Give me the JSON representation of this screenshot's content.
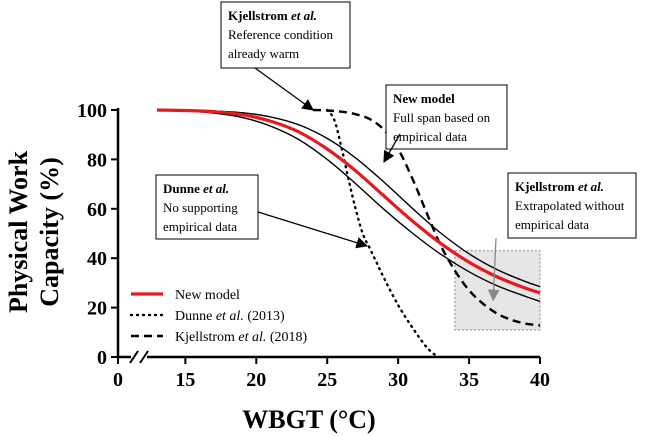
{
  "chart_data": {
    "type": "line",
    "xlabel": "WBGT (°C)",
    "ylabel_lines": [
      "Physical Work",
      "Capacity (%)"
    ],
    "x_ticks": [
      0,
      15,
      20,
      25,
      30,
      35,
      40
    ],
    "x_tick_labels": [
      "0",
      "15",
      "20",
      "25",
      "30",
      "35",
      "40"
    ],
    "y_ticks": [
      0,
      20,
      40,
      60,
      80,
      100
    ],
    "y_tick_labels": [
      "0",
      "20",
      "40",
      "60",
      "80",
      "100"
    ],
    "xlim": [
      0,
      40
    ],
    "ylim": [
      0,
      100
    ],
    "axis_break": true,
    "grid": false,
    "legend_position": "bottom-left",
    "colors": {
      "new_model": "#e8191d",
      "band": "#000000",
      "reference": "#000000",
      "highlight_fill": "#e6e6e6",
      "highlight_stroke": "#888888",
      "highlight_arrow": "#888888"
    },
    "series": [
      {
        "name": "New model",
        "style": "solid-red",
        "x": [
          13,
          15,
          17,
          19,
          21,
          23,
          25,
          27,
          29,
          31,
          33,
          35,
          37,
          39,
          40
        ],
        "y": [
          100,
          99.8,
          99.3,
          98.1,
          95.5,
          91.1,
          84.2,
          75.4,
          65.2,
          55.1,
          46.0,
          38.4,
          32.4,
          27.8,
          26.0
        ]
      },
      {
        "name": "Upper bound",
        "style": "solid-black-thin",
        "x": [
          13,
          15,
          17,
          19,
          21,
          23,
          25,
          27,
          29,
          31,
          33,
          35,
          37,
          39,
          40
        ],
        "y": [
          100,
          99.9,
          99.6,
          98.9,
          97.2,
          94.0,
          88.5,
          80.6,
          70.8,
          60.2,
          50.2,
          41.8,
          35.3,
          30.5,
          28.5
        ]
      },
      {
        "name": "Lower bound",
        "style": "solid-black-thin",
        "x": [
          13,
          15,
          17,
          19,
          21,
          23,
          25,
          27,
          29,
          31,
          33,
          35,
          37,
          39,
          40
        ],
        "y": [
          100,
          99.6,
          98.8,
          97.0,
          93.5,
          88.0,
          80.0,
          70.2,
          59.8,
          50.2,
          41.6,
          34.5,
          28.8,
          24.5,
          22.5
        ]
      },
      {
        "name": "Dunne et al. (2013)",
        "style": "dotted",
        "x": [
          25,
          25.5,
          26,
          26.5,
          27,
          27.5,
          28,
          28.5,
          29,
          30,
          31,
          32,
          32.8
        ],
        "y": [
          100,
          96,
          85,
          72,
          60,
          50,
          44,
          38,
          32,
          21,
          12,
          4,
          0
        ]
      },
      {
        "name": "Kjellstrom et al. (2018)",
        "style": "dashed",
        "x": [
          24,
          25,
          26,
          27,
          28,
          29,
          30,
          31,
          32,
          33,
          34,
          35,
          36,
          37,
          38,
          39,
          40
        ],
        "y": [
          100,
          99.8,
          99.3,
          98.3,
          96.3,
          92.0,
          84.2,
          72.3,
          58.5,
          45.2,
          35.0,
          27.0,
          21.5,
          17.5,
          15.0,
          13.5,
          12.8
        ]
      }
    ],
    "legend": [
      {
        "key": "new",
        "style": "solid-red",
        "parts": [
          {
            "t": "New model",
            "i": false
          }
        ]
      },
      {
        "key": "dunne",
        "style": "dotted",
        "parts": [
          {
            "t": "Dunne ",
            "i": false
          },
          {
            "t": "et al.",
            "i": true
          },
          {
            "t": " (2013)",
            "i": false
          }
        ]
      },
      {
        "key": "kjell",
        "style": "dashed",
        "parts": [
          {
            "t": "Kjellstrom ",
            "i": false
          },
          {
            "t": "et al.",
            "i": true
          },
          {
            "t": " (2018)",
            "i": false
          }
        ]
      }
    ],
    "annotations": [
      {
        "key": "kjellstrom-reference",
        "lines": [
          [
            {
              "t": "Kjellstrom ",
              "b": true
            },
            {
              "t": "et al.",
              "b": true,
              "i": true
            }
          ],
          [
            {
              "t": "Reference condition"
            }
          ],
          [
            {
              "t": "already warm"
            }
          ]
        ],
        "arrow_to": {
          "x": 24,
          "y": 100
        }
      },
      {
        "key": "new-model",
        "lines": [
          [
            {
              "t": "New model",
              "b": true
            }
          ],
          [
            {
              "t": "Full span based on"
            }
          ],
          [
            {
              "t": "empirical data"
            }
          ]
        ],
        "arrow_to": {
          "x": 29,
          "y": 79
        }
      },
      {
        "key": "dunne",
        "lines": [
          [
            {
              "t": "Dunne ",
              "b": true
            },
            {
              "t": "et al.",
              "b": true,
              "i": true
            }
          ],
          [
            {
              "t": "No supporting"
            }
          ],
          [
            {
              "t": "empirical data"
            }
          ]
        ],
        "arrow_to": {
          "x": 27.8,
          "y": 45
        }
      },
      {
        "key": "kjellstrom-extrapolated",
        "lines": [
          [
            {
              "t": "Kjellstrom ",
              "b": true
            },
            {
              "t": "et al.",
              "b": true,
              "i": true
            }
          ],
          [
            {
              "t": "Extrapolated without"
            }
          ],
          [
            {
              "t": "empirical data"
            }
          ]
        ],
        "arrow_to": {
          "x": 36.7,
          "y": 23
        }
      }
    ],
    "highlight_region": {
      "x": [
        34,
        40
      ],
      "y": [
        11,
        43
      ]
    }
  }
}
